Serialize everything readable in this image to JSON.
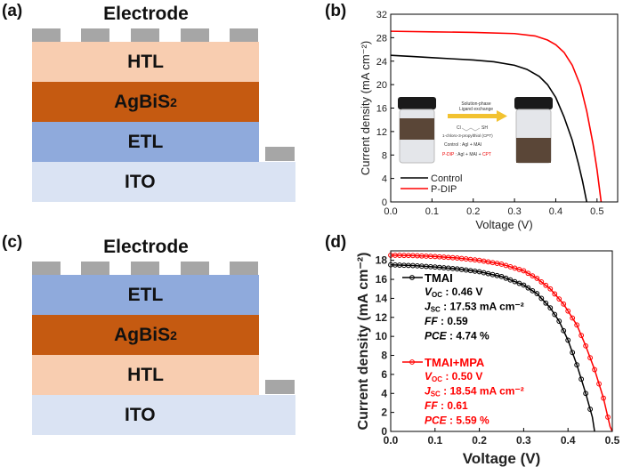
{
  "panels": {
    "a": "(a)",
    "b": "(b)",
    "c": "(c)",
    "d": "(d)"
  },
  "device_a": {
    "electrode": "Electrode",
    "layers": [
      {
        "name": "HTL",
        "color": "#f8cdb0"
      },
      {
        "name": "AgBiS",
        "sub": "2",
        "color": "#c55a11"
      },
      {
        "name": "ETL",
        "color": "#8faadc"
      },
      {
        "name": "ITO",
        "color": "#dae3f3"
      }
    ],
    "contact_color": "#a6a6a6"
  },
  "device_c": {
    "electrode": "Electrode",
    "layers": [
      {
        "name": "ETL",
        "color": "#8faadc"
      },
      {
        "name": "AgBiS",
        "sub": "2",
        "color": "#c55a11"
      },
      {
        "name": "HTL",
        "color": "#f8cdb0"
      },
      {
        "name": "ITO",
        "color": "#dae3f3"
      }
    ],
    "contact_color": "#a6a6a6"
  },
  "inset_b": {
    "arrow_top": "Solution-phase",
    "arrow_bottom": "Ligand exchange",
    "cl": "Cl",
    "sh": "SH",
    "ligand": "1-chloro-3-propylthiol (CPT)",
    "control": "Control : AgI + MAI",
    "pdip_label": "P-DIP",
    "pdip_rest": " : AgI + MAI + ",
    "pdip_cpt": "CPT"
  },
  "chart_data": [
    {
      "type": "line",
      "xlabel": "Voltage (V)",
      "ylabel": "Current density (mA cm⁻²)",
      "xlim": [
        0,
        0.55
      ],
      "ylim": [
        0,
        32
      ],
      "xticks": [
        0.0,
        0.1,
        0.2,
        0.3,
        0.4,
        0.5
      ],
      "yticks": [
        0,
        4,
        8,
        12,
        16,
        20,
        24,
        28,
        32
      ],
      "legend": "bottom-left",
      "markers": false,
      "series": [
        {
          "name": "Control",
          "color": "#000000",
          "x": [
            0,
            0.05,
            0.1,
            0.15,
            0.2,
            0.25,
            0.3,
            0.33,
            0.36,
            0.38,
            0.4,
            0.42,
            0.44,
            0.455,
            0.465,
            0.475
          ],
          "y": [
            25,
            24.8,
            24.6,
            24.4,
            24.2,
            23.9,
            23.3,
            22.6,
            21.4,
            20,
            17.8,
            14.5,
            10.5,
            6.5,
            3.5,
            0
          ]
        },
        {
          "name": "P-DIP",
          "color": "#ff0000",
          "x": [
            0,
            0.1,
            0.2,
            0.3,
            0.35,
            0.38,
            0.4,
            0.42,
            0.44,
            0.46,
            0.475,
            0.49,
            0.5,
            0.51
          ],
          "y": [
            29.1,
            29,
            28.9,
            28.7,
            28.3,
            27.6,
            26.8,
            25.5,
            23.3,
            19.8,
            15.5,
            10,
            5.5,
            0
          ]
        }
      ]
    },
    {
      "type": "line",
      "xlabel": "Voltage (V)",
      "ylabel": "Current density (mA cm⁻²)",
      "xlim": [
        0,
        0.5
      ],
      "ylim": [
        0,
        19
      ],
      "xticks": [
        0.0,
        0.1,
        0.2,
        0.3,
        0.4,
        0.5
      ],
      "yticks": [
        0,
        2,
        4,
        6,
        8,
        10,
        12,
        14,
        16,
        18
      ],
      "legend": "left",
      "markers": true,
      "series": [
        {
          "name": "TMAI",
          "color": "#000000",
          "stats": [
            [
              "V",
              "OC",
              " : 0.46 V"
            ],
            [
              "J",
              "SC",
              " : 17.53 mA cm⁻²"
            ],
            [
              "FF",
              "",
              " : 0.59"
            ],
            [
              "PCE",
              "",
              " : 4.74 %"
            ]
          ],
          "x": [
            0,
            0.05,
            0.1,
            0.15,
            0.2,
            0.25,
            0.3,
            0.33,
            0.36,
            0.38,
            0.4,
            0.42,
            0.44,
            0.455,
            0.46
          ],
          "y": [
            17.53,
            17.45,
            17.3,
            17.1,
            16.8,
            16.3,
            15.4,
            14.5,
            13,
            11.6,
            9.6,
            7,
            4,
            1.5,
            0
          ]
        },
        {
          "name": "TMAI+MPA",
          "color": "#ff0000",
          "stats": [
            [
              "V",
              "OC",
              " : 0.50 V"
            ],
            [
              "J",
              "SC",
              " : 18.54 mA cm⁻²"
            ],
            [
              "FF",
              "",
              " : 0.61"
            ],
            [
              "PCE",
              "",
              " : 5.59 %"
            ]
          ],
          "x": [
            0,
            0.05,
            0.1,
            0.15,
            0.2,
            0.25,
            0.3,
            0.33,
            0.36,
            0.39,
            0.42,
            0.44,
            0.46,
            0.48,
            0.495,
            0.5
          ],
          "y": [
            18.54,
            18.5,
            18.4,
            18.25,
            18,
            17.6,
            16.9,
            16.1,
            15,
            13.4,
            11.2,
            9,
            6.5,
            3.5,
            0.5,
            0
          ]
        }
      ]
    }
  ]
}
